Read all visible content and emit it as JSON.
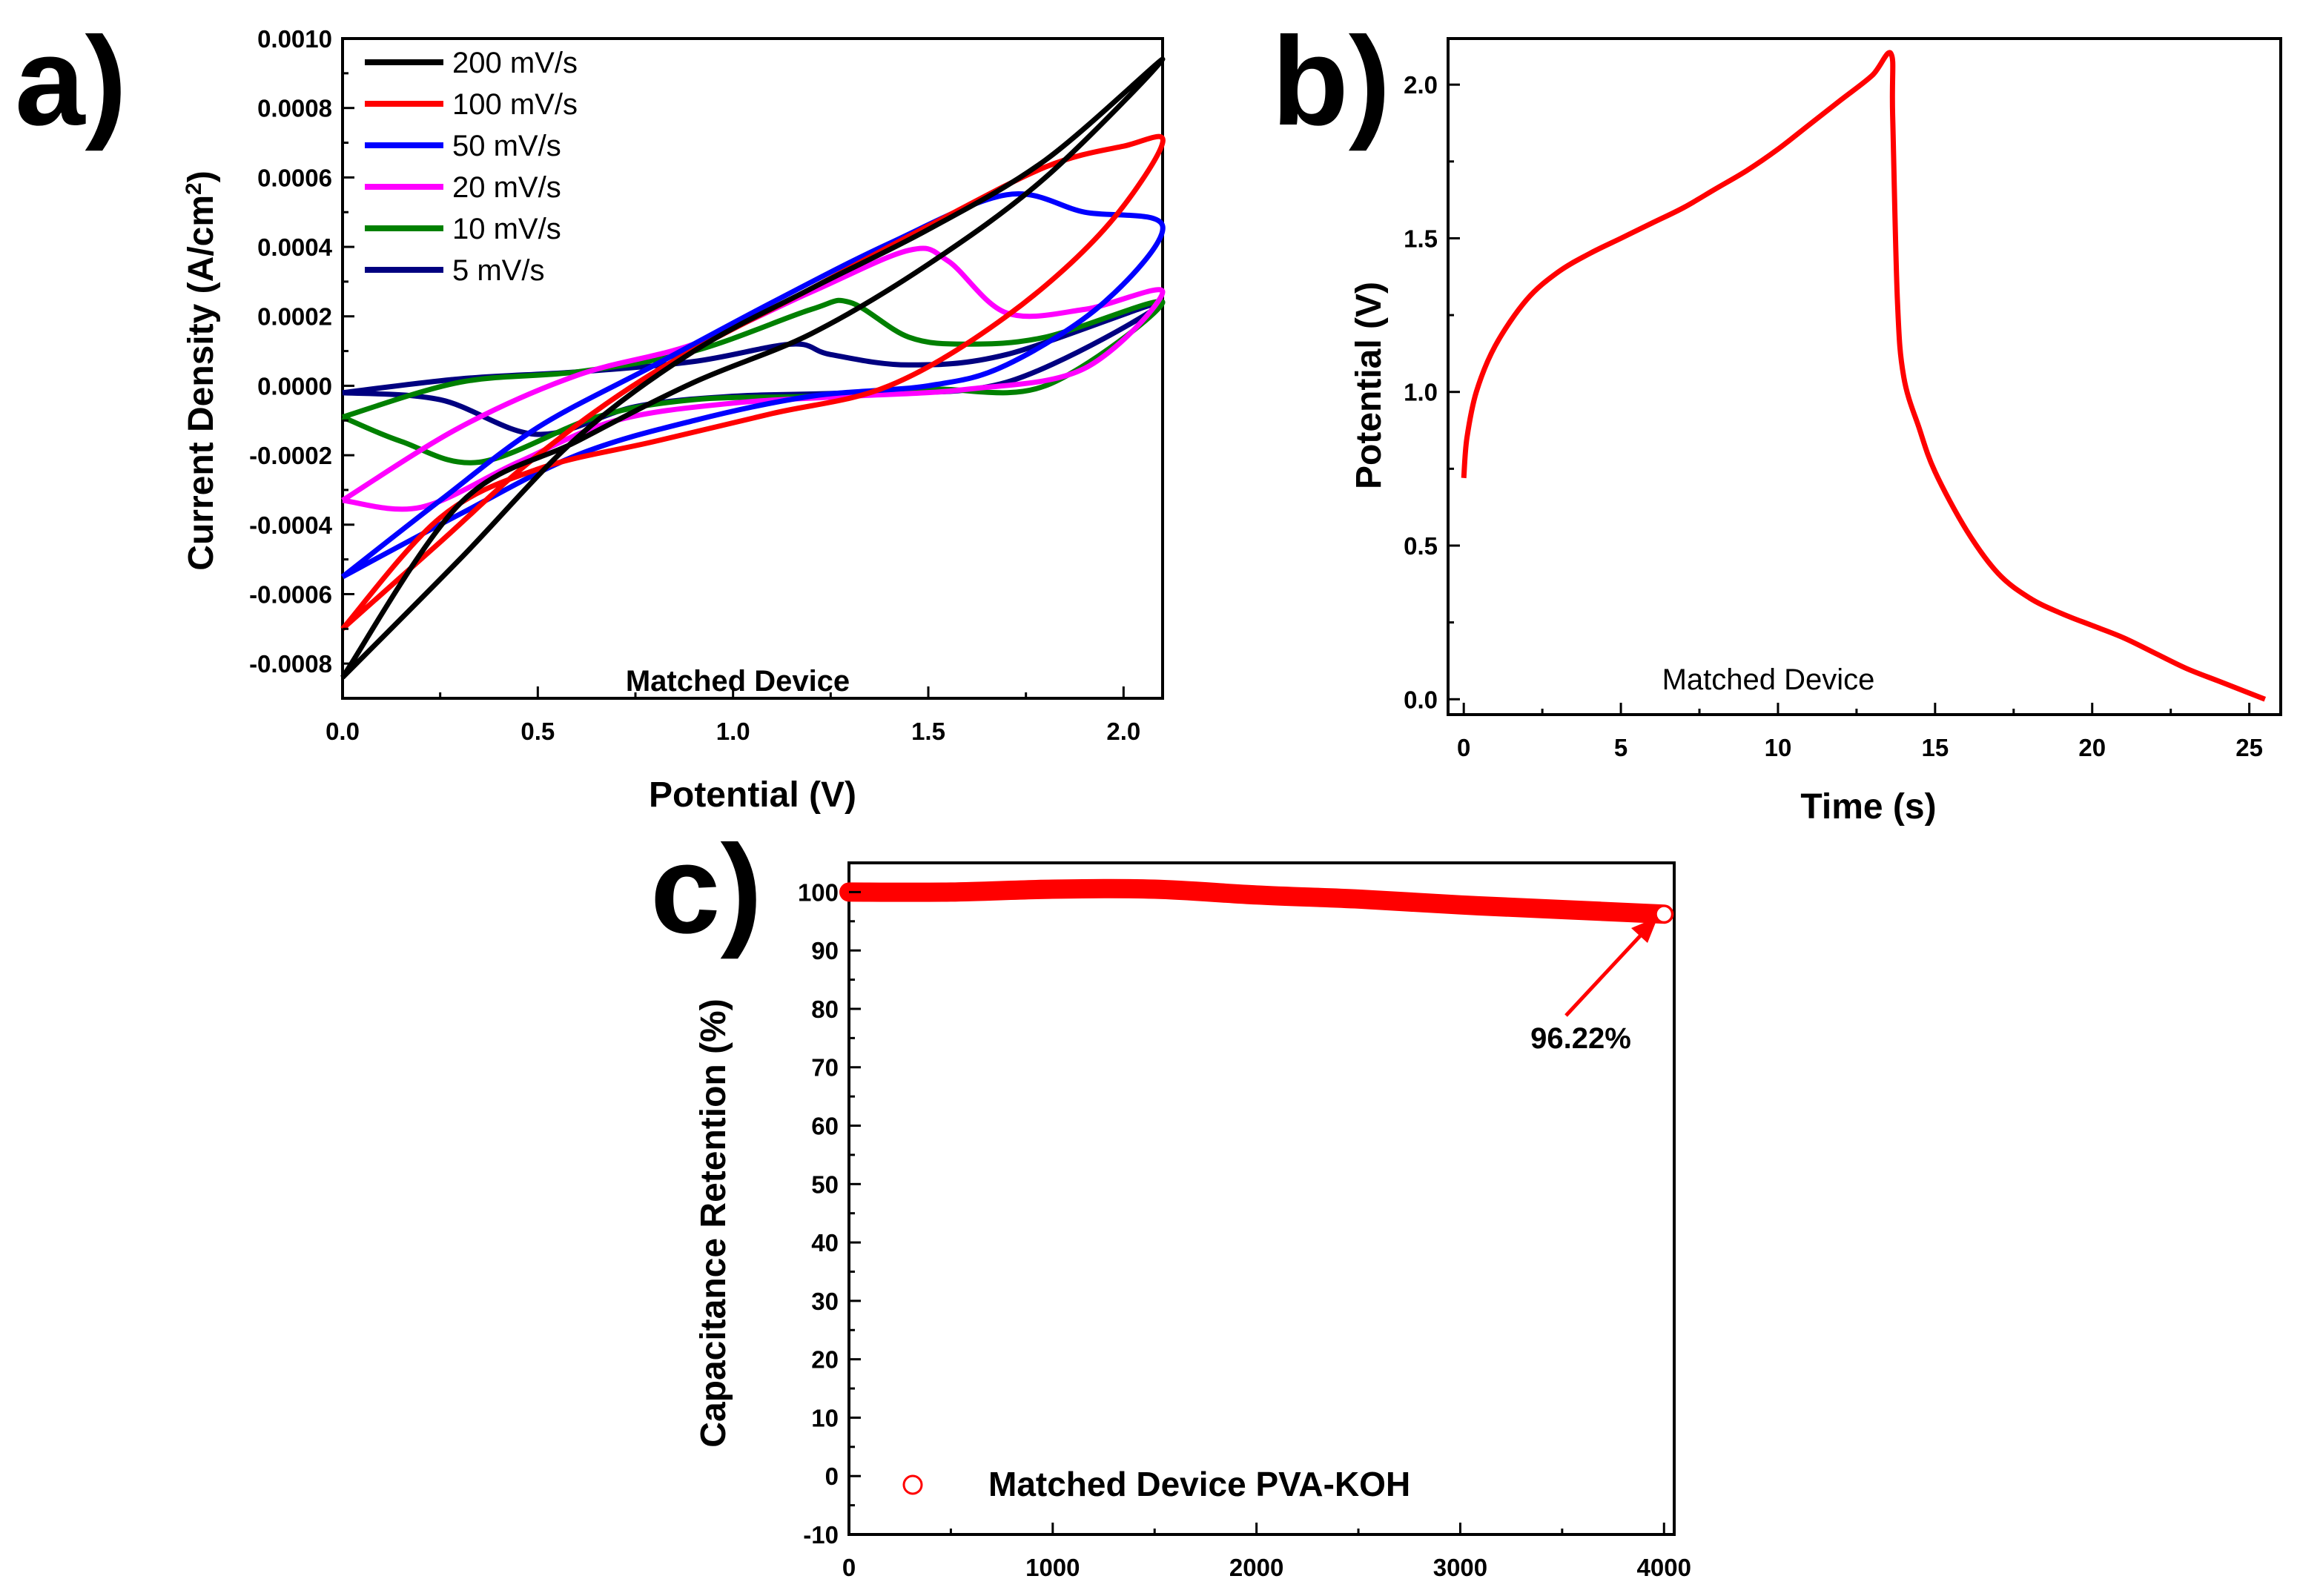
{
  "chart_data": [
    {
      "panel": "a)",
      "type": "line",
      "xlabel": "Potential (V)",
      "ylabel_main": "Current Density (A/cm",
      "ylabel_sup": "2",
      "ylabel_end": ")",
      "xlim": [
        0,
        2.1
      ],
      "ylim": [
        -0.0009,
        0.001
      ],
      "xticks": [
        0.0,
        0.5,
        1.0,
        1.5,
        2.0
      ],
      "xtick_labels": [
        "0.0",
        "0.5",
        "1.0",
        "1.5",
        "2.0"
      ],
      "yticks": [
        -0.0008,
        -0.0006,
        -0.0004,
        -0.0002,
        0.0,
        0.0002,
        0.0004,
        0.0006,
        0.0008,
        0.001
      ],
      "ytick_labels": [
        "-0.0008",
        "-0.0006",
        "-0.0004",
        "-0.0002",
        "0.0000",
        "0.0002",
        "0.0004",
        "0.0006",
        "0.0008",
        "0.0010"
      ],
      "annotation": "Matched Device",
      "legend_position": "top-left",
      "series": [
        {
          "name": "200 mV/s",
          "color": "#000000",
          "x": [
            0.0,
            0.3,
            0.6,
            0.9,
            1.2,
            1.5,
            1.8,
            2.1,
            1.8,
            1.5,
            1.2,
            0.9,
            0.6,
            0.3,
            0.0
          ],
          "y": [
            -0.00084,
            -0.0005,
            -0.00015,
            0.0001,
            0.00028,
            0.00045,
            0.00065,
            0.00094,
            0.0006,
            0.00035,
            0.00015,
            1e-05,
            -0.00016,
            -0.00034,
            -0.00084
          ]
        },
        {
          "name": "100 mV/s",
          "color": "#ff0000",
          "x": [
            0.0,
            0.25,
            0.5,
            0.8,
            1.2,
            1.5,
            1.8,
            2.0,
            2.1,
            1.95,
            1.7,
            1.4,
            1.1,
            0.8,
            0.5,
            0.25,
            0.0
          ],
          "y": [
            -0.0007,
            -0.00045,
            -0.0002,
            4e-05,
            0.00028,
            0.00046,
            0.00063,
            0.00069,
            0.0007,
            0.00045,
            0.0002,
            0.0,
            -8e-05,
            -0.00016,
            -0.00024,
            -0.00038,
            -0.0007
          ]
        },
        {
          "name": "50 mV/s",
          "color": "#0000ff",
          "x": [
            0.0,
            0.25,
            0.5,
            0.8,
            1.1,
            1.4,
            1.7,
            1.9,
            2.1,
            1.95,
            1.7,
            1.5,
            1.2,
            0.9,
            0.6,
            0.3,
            0.0
          ],
          "y": [
            -0.00055,
            -0.00033,
            -0.00012,
            6e-05,
            0.00024,
            0.00041,
            0.00055,
            0.0005,
            0.00046,
            0.00024,
            6e-05,
            0.0,
            -3e-05,
            -0.0001,
            -0.0002,
            -0.00037,
            -0.00055
          ]
        },
        {
          "name": "20 mV/s",
          "color": "#ff00ff",
          "x": [
            0.0,
            0.3,
            0.6,
            0.9,
            1.2,
            1.45,
            1.55,
            1.7,
            1.9,
            2.1,
            1.9,
            1.6,
            1.3,
            1.0,
            0.7,
            0.45,
            0.2,
            0.0
          ],
          "y": [
            -0.00033,
            -0.00012,
            3e-05,
            0.00012,
            0.00027,
            0.00039,
            0.00036,
            0.00021,
            0.00022,
            0.00027,
            5e-05,
            -1e-05,
            -3e-05,
            -5e-05,
            -0.0001,
            -0.00022,
            -0.00035,
            -0.00033
          ]
        },
        {
          "name": "10 mV/s",
          "color": "#008000",
          "x": [
            0.0,
            0.3,
            0.6,
            0.9,
            1.2,
            1.3,
            1.45,
            1.6,
            1.8,
            2.1,
            1.8,
            1.5,
            1.2,
            0.9,
            0.65,
            0.35,
            0.15,
            0.0
          ],
          "y": [
            -9e-05,
            1e-05,
            4e-05,
            0.0001,
            0.00022,
            0.00024,
            0.00014,
            0.00012,
            0.00014,
            0.00024,
            0.0,
            -1e-05,
            -3e-05,
            -4e-05,
            -9e-05,
            -0.00022,
            -0.00016,
            -9e-05
          ]
        },
        {
          "name": "5 mV/s",
          "color": "#000080",
          "x": [
            0.0,
            0.3,
            0.6,
            0.9,
            1.15,
            1.25,
            1.45,
            1.7,
            2.1,
            1.7,
            1.3,
            1.0,
            0.75,
            0.5,
            0.25,
            0.0
          ],
          "y": [
            -2e-05,
            2e-05,
            4e-05,
            7e-05,
            0.00012,
            9e-05,
            6e-05,
            9e-05,
            0.00024,
            1e-05,
            -2e-05,
            -3e-05,
            -6e-05,
            -0.00014,
            -4e-05,
            -2e-05
          ]
        }
      ]
    },
    {
      "panel": "b)",
      "type": "line",
      "xlabel": "Time (s)",
      "ylabel": "Potential (V)",
      "xlim": [
        -0.5,
        26
      ],
      "ylim": [
        -0.05,
        2.15
      ],
      "xticks": [
        0,
        5,
        10,
        15,
        20,
        25
      ],
      "xtick_labels": [
        "0",
        "5",
        "10",
        "15",
        "20",
        "25"
      ],
      "yticks": [
        0.0,
        0.5,
        1.0,
        1.5,
        2.0
      ],
      "ytick_labels": [
        "0.0",
        "0.5",
        "1.0",
        "1.5",
        "2.0"
      ],
      "annotation": "Matched Device",
      "series": [
        {
          "color": "#ff0000",
          "x": [
            0.0,
            0.1,
            0.4,
            1.0,
            2.0,
            3.0,
            4.0,
            5.0,
            6.0,
            7.0,
            8.0,
            9.0,
            10.0,
            11.0,
            12.0,
            13.0,
            13.6,
            13.65,
            13.8,
            14.0,
            14.5,
            15.0,
            16.0,
            17.0,
            18.0,
            19.0,
            20.0,
            21.0,
            22.0,
            23.0,
            24.0,
            25.0,
            25.5
          ],
          "y": [
            0.72,
            0.85,
            1.0,
            1.15,
            1.3,
            1.39,
            1.45,
            1.5,
            1.55,
            1.6,
            1.66,
            1.72,
            1.79,
            1.87,
            1.95,
            2.03,
            2.1,
            1.9,
            1.3,
            1.05,
            0.88,
            0.74,
            0.55,
            0.41,
            0.33,
            0.28,
            0.24,
            0.2,
            0.15,
            0.1,
            0.06,
            0.02,
            0.0
          ]
        }
      ]
    },
    {
      "panel": "c)",
      "type": "scatter",
      "ylabel": "Capacitance Retention (%)",
      "xlim": [
        0,
        4050
      ],
      "ylim": [
        -10,
        105
      ],
      "xticks": [
        0,
        1000,
        2000,
        3000,
        4000
      ],
      "xtick_labels": [
        "0",
        "1000",
        "2000",
        "3000",
        "4000"
      ],
      "yticks": [
        -10,
        0,
        10,
        20,
        30,
        40,
        50,
        60,
        70,
        80,
        90,
        100
      ],
      "ytick_labels": [
        "-10",
        "0",
        "10",
        "20",
        "30",
        "40",
        "50",
        "60",
        "70",
        "80",
        "90",
        "100"
      ],
      "annotation": "96.22%",
      "annotation_point": [
        4000,
        96.22
      ],
      "series": [
        {
          "name": "Matched Device PVA-KOH",
          "color": "#ff0000",
          "x": [
            0,
            500,
            1000,
            1500,
            2000,
            2500,
            3000,
            3500,
            4000
          ],
          "y": [
            100,
            100,
            100.5,
            100.5,
            99.5,
            98.8,
            97.8,
            97,
            96.22
          ]
        }
      ]
    }
  ]
}
